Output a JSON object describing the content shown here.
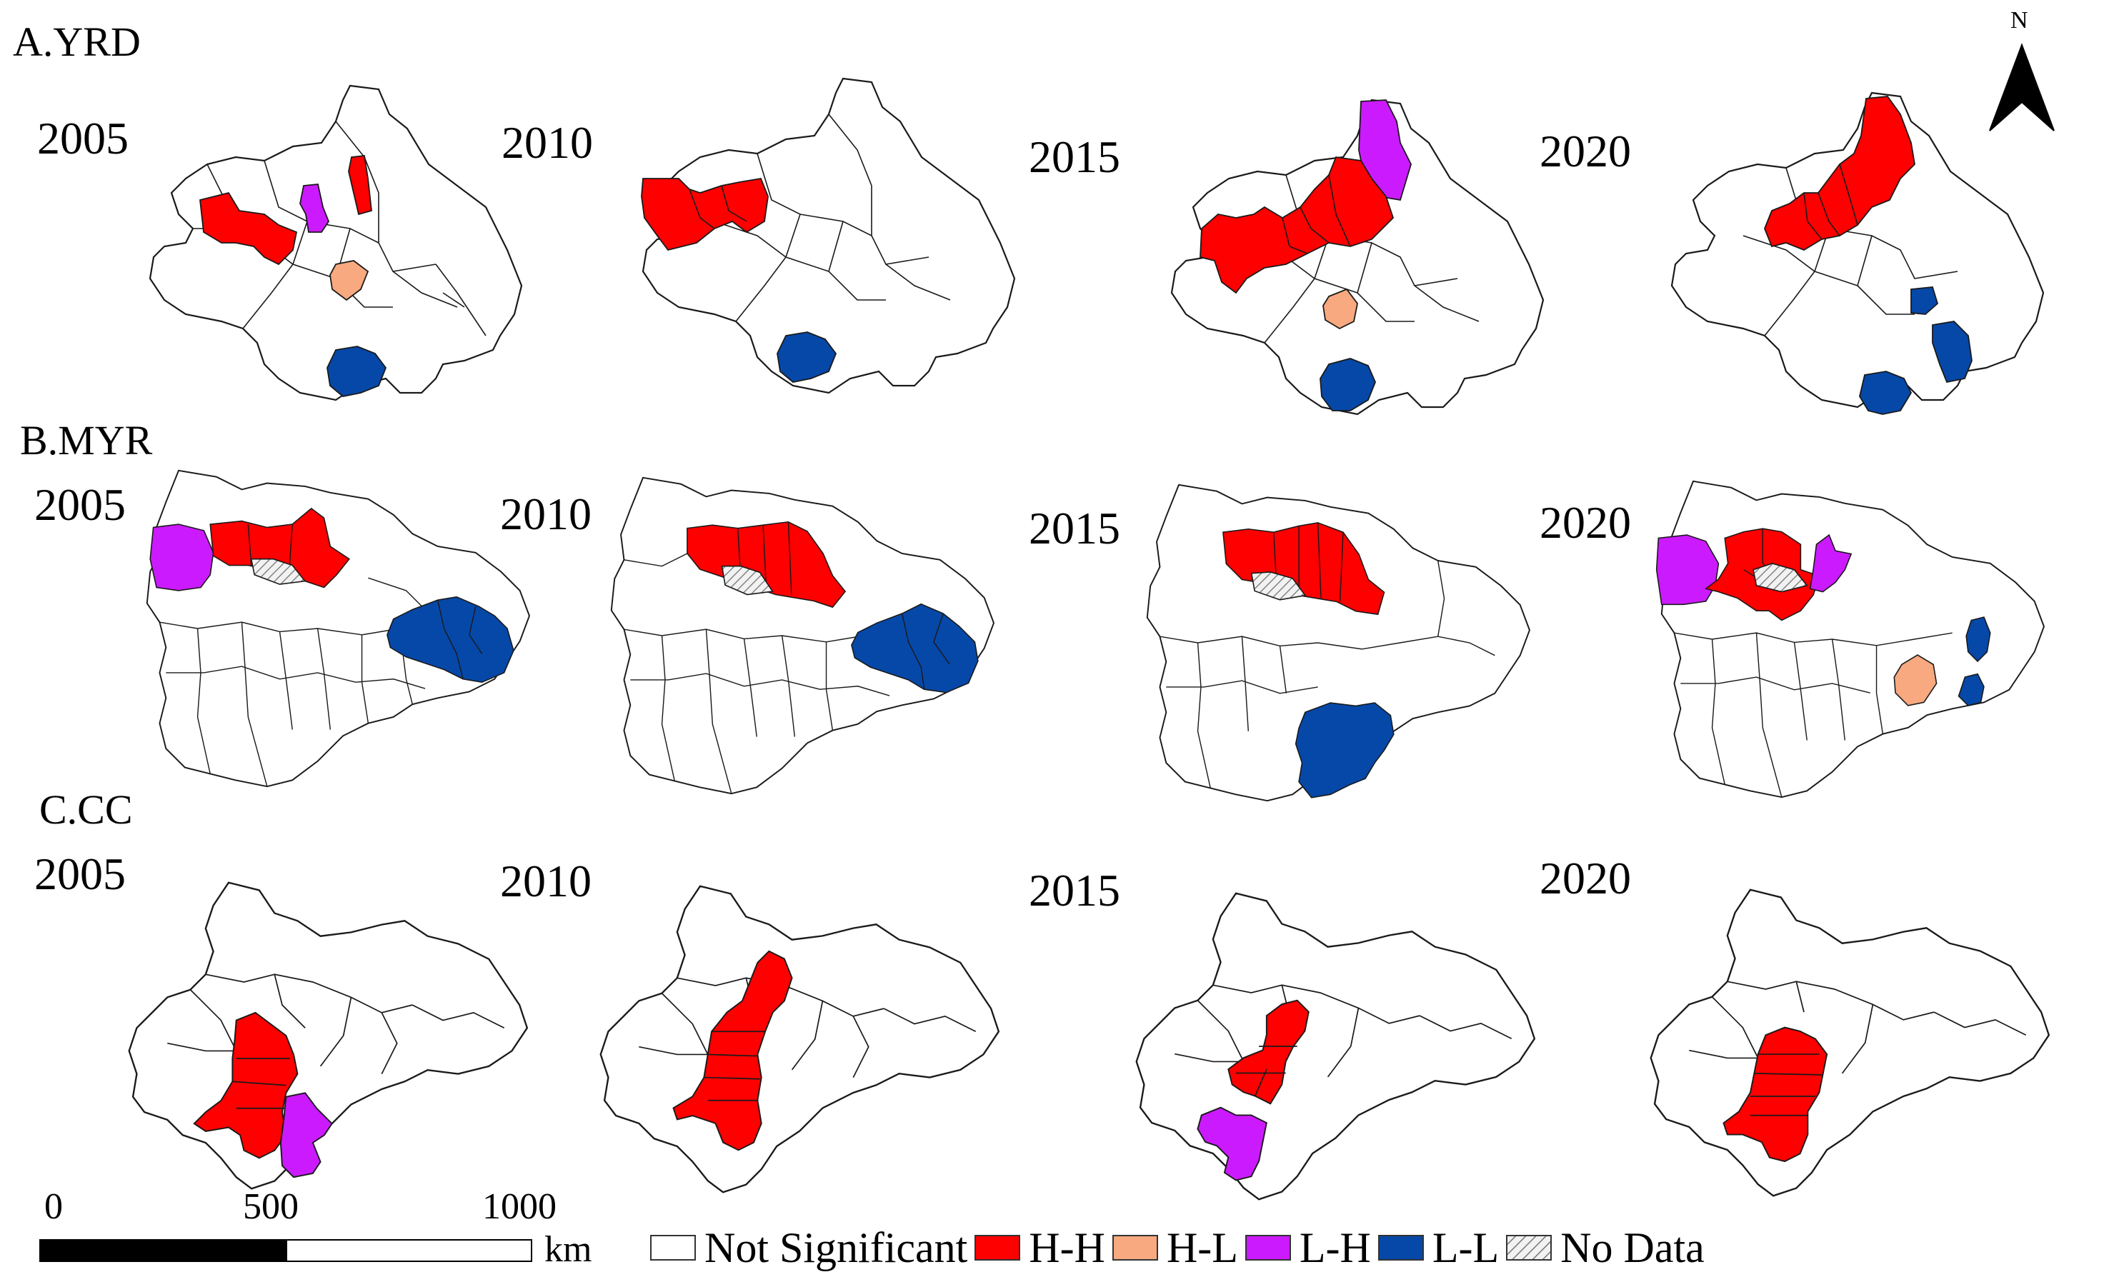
{
  "sections": [
    {
      "label": "A.YRD",
      "years": [
        "2005",
        "2010",
        "2015",
        "2020"
      ]
    },
    {
      "label": "B.MYR",
      "years": [
        "2005",
        "2010",
        "2015",
        "2020"
      ]
    },
    {
      "label": "C.CC",
      "years": [
        "2005",
        "2010",
        "2015",
        "2020"
      ]
    }
  ],
  "north_arrow": {
    "label": "N"
  },
  "scale_bar": {
    "ticks": [
      "0",
      "500",
      "1000"
    ],
    "unit": "km"
  },
  "legend": [
    {
      "label": "Not Significant",
      "color": "#ffffff",
      "pattern": "none"
    },
    {
      "label": "H-H",
      "color": "#ff0000",
      "pattern": "none"
    },
    {
      "label": "H-L",
      "color": "#f8a980",
      "pattern": "none"
    },
    {
      "label": "L-H",
      "color": "#cc1aff",
      "pattern": "none"
    },
    {
      "label": "L-L",
      "color": "#0648a8",
      "pattern": "none"
    },
    {
      "label": "No Data",
      "color": "#e6e6e6",
      "pattern": "hatch"
    }
  ]
}
